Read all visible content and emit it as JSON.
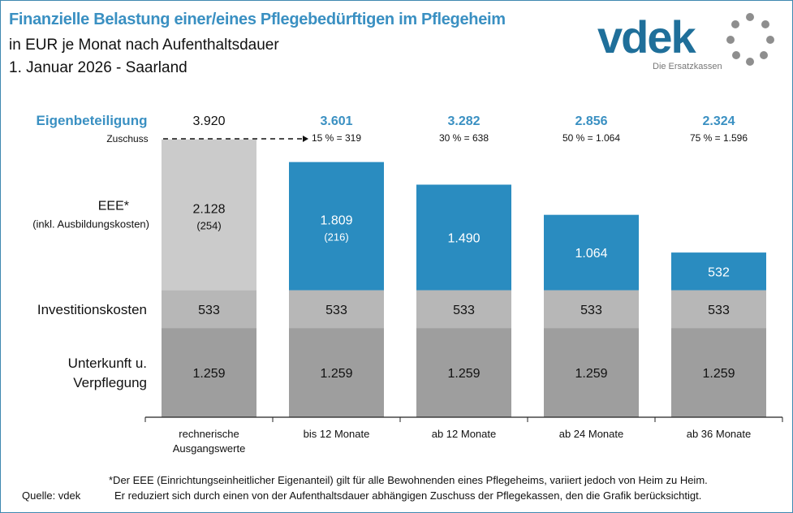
{
  "header": {
    "title": "Finanzielle Belastung einer/eines Pflegebedürftigen im Pflegeheim",
    "subtitle": "in EUR je Monat nach Aufenthaltsdauer",
    "date_region": "1. Januar 2026 - Saarland"
  },
  "logo": {
    "text": "vdek",
    "tagline": "Die Ersatzkassen"
  },
  "chart_data": {
    "type": "bar",
    "stacked": true,
    "title": "Finanzielle Belastung einer/eines Pflegebedürftigen im Pflegeheim",
    "categories": [
      [
        "rechnerische",
        "Ausgangswerte"
      ],
      [
        "bis 12 Monate"
      ],
      [
        "ab 12 Monate"
      ],
      [
        "ab 24 Monate"
      ],
      [
        "ab 36 Monate"
      ]
    ],
    "series": [
      {
        "name": "Unterkunft u. Verpflegung",
        "label_lines": [
          "Unterkunft u.",
          "Verpflegung"
        ],
        "values": [
          1259,
          1259,
          1259,
          1259,
          1259
        ],
        "labels": [
          "1.259",
          "1.259",
          "1.259",
          "1.259",
          "1.259"
        ],
        "color": "#9e9e9e"
      },
      {
        "name": "Investitionskosten",
        "label_lines": [
          "Investitionskosten"
        ],
        "values": [
          533,
          533,
          533,
          533,
          533
        ],
        "labels": [
          "533",
          "533",
          "533",
          "533",
          "533"
        ],
        "color": "#b7b7b7"
      },
      {
        "name": "EEE*",
        "label_lines": [
          "EEE*",
          "(inkl. Ausbildungskosten)"
        ],
        "values": [
          2128,
          1809,
          1490,
          1064,
          532
        ],
        "labels": [
          "2.128",
          "1.809",
          "1.490",
          "1.064",
          "532"
        ],
        "sublabels": [
          "(254)",
          "(216)",
          "",
          "",
          ""
        ],
        "color": "#2a8cc0",
        "first_color": "#cbcbcb"
      }
    ],
    "eigenbeteiligung_label": "Eigenbeteiligung",
    "eigenbeteiligung": [
      "3.920",
      "3.601",
      "3.282",
      "2.856",
      "2.324"
    ],
    "zuschuss_label": "Zuschuss",
    "zuschuss": [
      "",
      "15 % = 319",
      "30 % = 638",
      "50 % = 1.064",
      "75 % = 1.596"
    ],
    "ylim": [
      0,
      4000
    ],
    "grid": false,
    "accent": "#3a90c2"
  },
  "footnote": {
    "line1": "*Der EEE (Einrichtungseinheitlicher Eigenanteil) gilt für alle Bewohnenden eines Pflegeheims, variiert jedoch von Heim zu Heim.",
    "line2": "Er reduziert sich durch einen von der Aufenthaltsdauer abhängigen Zuschuss der Pflegekassen, den die Grafik berücksichtigt.",
    "source": "Quelle: vdek"
  }
}
